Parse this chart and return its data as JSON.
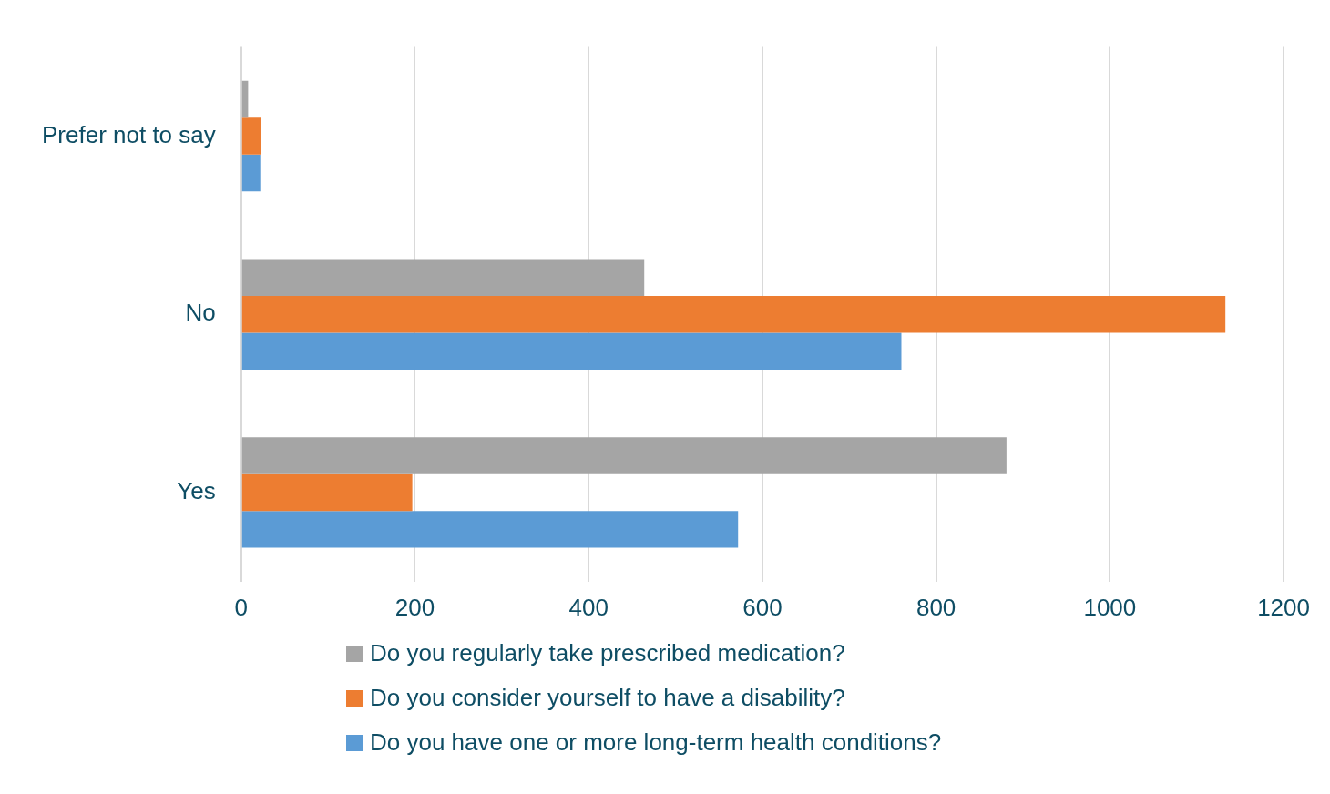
{
  "chart_data": {
    "type": "bar",
    "orientation": "horizontal",
    "categories": [
      "Prefer not to say",
      "No",
      "Yes"
    ],
    "series": [
      {
        "name": "Do you regularly take prescribed medication?",
        "color": "#a5a5a5",
        "values": [
          8,
          464,
          881
        ]
      },
      {
        "name": "Do you consider yourself to have a disability?",
        "color": "#ed7d31",
        "values": [
          23,
          1133,
          197
        ]
      },
      {
        "name": "Do you have one or more long-term health conditions?",
        "color": "#5b9bd5",
        "values": [
          22,
          760,
          572
        ]
      }
    ],
    "xlim": [
      0,
      1200
    ],
    "xticks": [
      0,
      200,
      400,
      600,
      800,
      1000,
      1200
    ],
    "grid": "x",
    "legend": "bottom"
  }
}
